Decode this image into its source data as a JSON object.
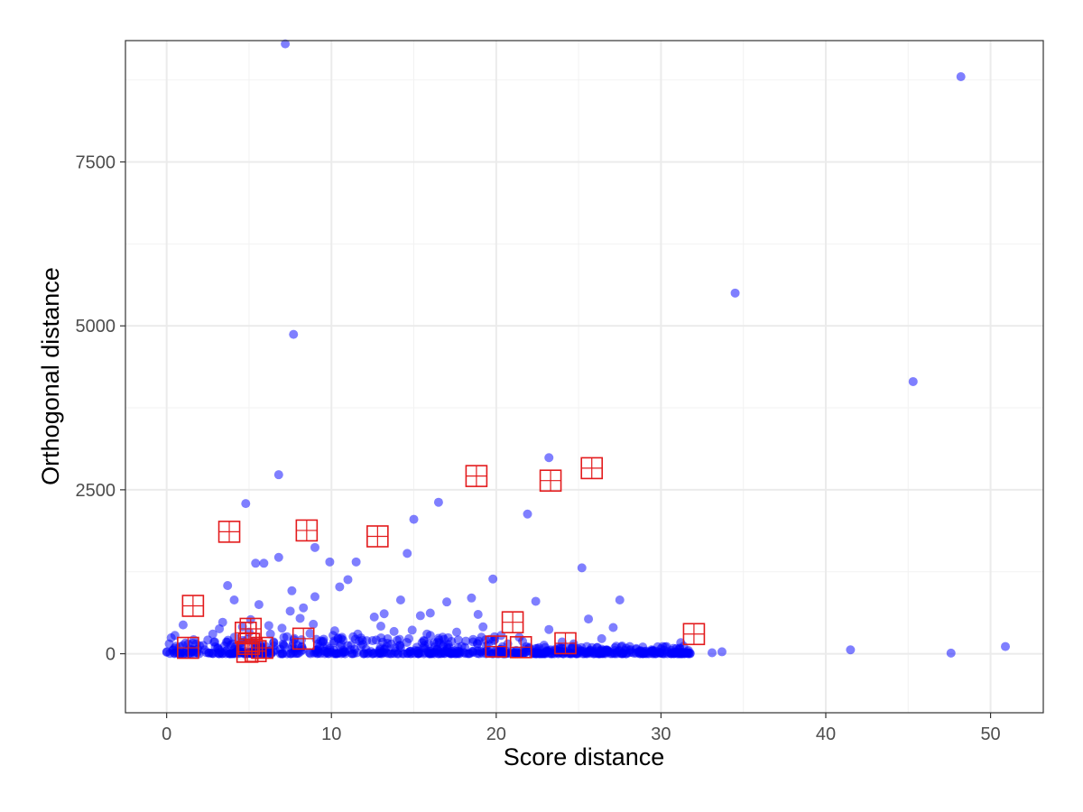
{
  "chart_data": {
    "type": "scatter",
    "xlabel": "Score distance",
    "ylabel": "Orthogonal distance",
    "xlim": [
      -2.5,
      53.2
    ],
    "ylim": [
      -900,
      9350
    ],
    "x_ticks": [
      0,
      10,
      20,
      30,
      40,
      50
    ],
    "y_ticks": [
      0,
      2500,
      5000,
      7500
    ],
    "grid": true,
    "point_color": "#0000ff",
    "marker_color": "#e31a1c",
    "points": [
      [
        7.2,
        9300
      ],
      [
        48.2,
        8800
      ],
      [
        34.5,
        5500
      ],
      [
        45.3,
        4150
      ],
      [
        7.7,
        4870
      ],
      [
        6.8,
        2730
      ],
      [
        4.8,
        2290
      ],
      [
        23.2,
        2990
      ],
      [
        16.5,
        2310
      ],
      [
        21.9,
        2130
      ],
      [
        15.0,
        2050
      ],
      [
        14.6,
        1530
      ],
      [
        9.0,
        1620
      ],
      [
        5.4,
        1380
      ],
      [
        5.9,
        1380
      ],
      [
        6.8,
        1470
      ],
      [
        9.9,
        1400
      ],
      [
        11.5,
        1400
      ],
      [
        25.2,
        1310
      ],
      [
        19.8,
        1140
      ],
      [
        3.7,
        1040
      ],
      [
        7.6,
        960
      ],
      [
        4.1,
        820
      ],
      [
        10.5,
        1020
      ],
      [
        11.0,
        1130
      ],
      [
        27.5,
        820
      ],
      [
        22.4,
        800
      ],
      [
        18.5,
        850
      ],
      [
        17.0,
        790
      ],
      [
        14.2,
        820
      ],
      [
        9.0,
        870
      ],
      [
        8.3,
        700
      ],
      [
        5.6,
        750
      ],
      [
        1.0,
        440
      ],
      [
        0.5,
        280
      ],
      [
        25.6,
        530
      ],
      [
        27.1,
        400
      ],
      [
        31.2,
        170
      ],
      [
        50.9,
        110
      ],
      [
        41.5,
        60
      ],
      [
        47.6,
        10
      ],
      [
        33.1,
        15
      ],
      [
        33.7,
        30
      ],
      [
        1.2,
        40
      ],
      [
        2.0,
        120
      ],
      [
        2.8,
        300
      ],
      [
        3.4,
        480
      ],
      [
        6.2,
        430
      ],
      [
        7.5,
        650
      ],
      [
        8.1,
        540
      ],
      [
        10.2,
        350
      ],
      [
        12.6,
        560
      ],
      [
        13.2,
        610
      ],
      [
        15.4,
        580
      ],
      [
        16.0,
        620
      ],
      [
        18.9,
        600
      ],
      [
        20.3,
        280
      ],
      [
        23.2,
        370
      ],
      [
        24.7,
        150
      ],
      [
        26.4,
        230
      ],
      [
        28.5,
        80
      ],
      [
        29.1,
        40
      ],
      [
        30.1,
        110
      ],
      [
        30.8,
        20
      ],
      [
        0.2,
        5
      ],
      [
        0.6,
        15
      ],
      [
        0.9,
        30
      ],
      [
        1.4,
        70
      ],
      [
        1.8,
        20
      ],
      [
        2.3,
        60
      ],
      [
        2.7,
        10
      ],
      [
        3.1,
        90
      ],
      [
        3.6,
        40
      ],
      [
        4.0,
        150
      ],
      [
        4.4,
        25
      ],
      [
        4.9,
        220
      ],
      [
        5.3,
        60
      ],
      [
        5.7,
        120
      ],
      [
        6.1,
        35
      ],
      [
        6.5,
        180
      ],
      [
        6.9,
        70
      ],
      [
        7.3,
        260
      ],
      [
        7.8,
        40
      ],
      [
        8.2,
        110
      ],
      [
        8.7,
        310
      ],
      [
        9.1,
        55
      ],
      [
        9.5,
        190
      ],
      [
        9.9,
        80
      ],
      [
        10.4,
        240
      ],
      [
        10.8,
        30
      ],
      [
        11.2,
        130
      ],
      [
        11.6,
        300
      ],
      [
        12.1,
        70
      ],
      [
        12.5,
        200
      ],
      [
        12.9,
        45
      ],
      [
        13.4,
        160
      ],
      [
        13.8,
        340
      ],
      [
        14.2,
        90
      ],
      [
        14.7,
        230
      ],
      [
        15.1,
        50
      ],
      [
        15.5,
        170
      ],
      [
        16.0,
        280
      ],
      [
        16.4,
        65
      ],
      [
        16.8,
        140
      ],
      [
        17.3,
        35
      ],
      [
        17.7,
        210
      ],
      [
        18.1,
        95
      ],
      [
        18.6,
        180
      ],
      [
        19.0,
        40
      ],
      [
        19.4,
        120
      ],
      [
        19.9,
        260
      ],
      [
        20.3,
        70
      ],
      [
        20.7,
        150
      ],
      [
        21.2,
        30
      ],
      [
        21.6,
        190
      ],
      [
        22.0,
        85
      ],
      [
        22.5,
        45
      ],
      [
        22.9,
        130
      ],
      [
        23.3,
        60
      ],
      [
        23.8,
        100
      ],
      [
        24.2,
        25
      ],
      [
        24.6,
        80
      ],
      [
        25.1,
        40
      ],
      [
        25.5,
        110
      ],
      [
        25.9,
        20
      ],
      [
        26.4,
        70
      ],
      [
        26.8,
        35
      ],
      [
        27.2,
        90
      ],
      [
        27.7,
        15
      ],
      [
        28.1,
        50
      ],
      [
        28.6,
        25
      ],
      [
        29.0,
        10
      ],
      [
        29.5,
        40
      ],
      [
        29.9,
        15
      ],
      [
        30.4,
        30
      ],
      [
        30.8,
        5
      ],
      [
        31.3,
        20
      ],
      [
        31.7,
        10
      ],
      [
        3.2,
        380
      ],
      [
        4.6,
        410
      ],
      [
        5.1,
        520
      ],
      [
        6.3,
        300
      ],
      [
        8.9,
        450
      ],
      [
        10.1,
        280
      ],
      [
        13.0,
        420
      ],
      [
        14.9,
        360
      ],
      [
        17.6,
        330
      ],
      [
        19.2,
        410
      ],
      [
        21.4,
        250
      ],
      [
        0.4,
        60
      ],
      [
        0.8,
        110
      ],
      [
        1.6,
        160
      ],
      [
        2.5,
        210
      ],
      [
        5.0,
        330
      ],
      [
        7.0,
        390
      ],
      [
        11.8,
        240
      ],
      [
        15.8,
        300
      ],
      [
        19.6,
        220
      ],
      [
        24.0,
        180
      ]
    ],
    "highlighted_points": [
      [
        1.6,
        730
      ],
      [
        3.8,
        1860
      ],
      [
        8.5,
        1880
      ],
      [
        12.8,
        1790
      ],
      [
        18.8,
        2710
      ],
      [
        23.3,
        2640
      ],
      [
        25.8,
        2830
      ],
      [
        32.0,
        300
      ],
      [
        21.0,
        480
      ],
      [
        24.2,
        160
      ],
      [
        20.0,
        110
      ],
      [
        21.5,
        100
      ],
      [
        8.3,
        230
      ],
      [
        1.3,
        90
      ],
      [
        4.8,
        320
      ],
      [
        5.1,
        380
      ],
      [
        5.0,
        150
      ],
      [
        5.4,
        40
      ],
      [
        5.8,
        90
      ],
      [
        4.9,
        30
      ]
    ]
  }
}
